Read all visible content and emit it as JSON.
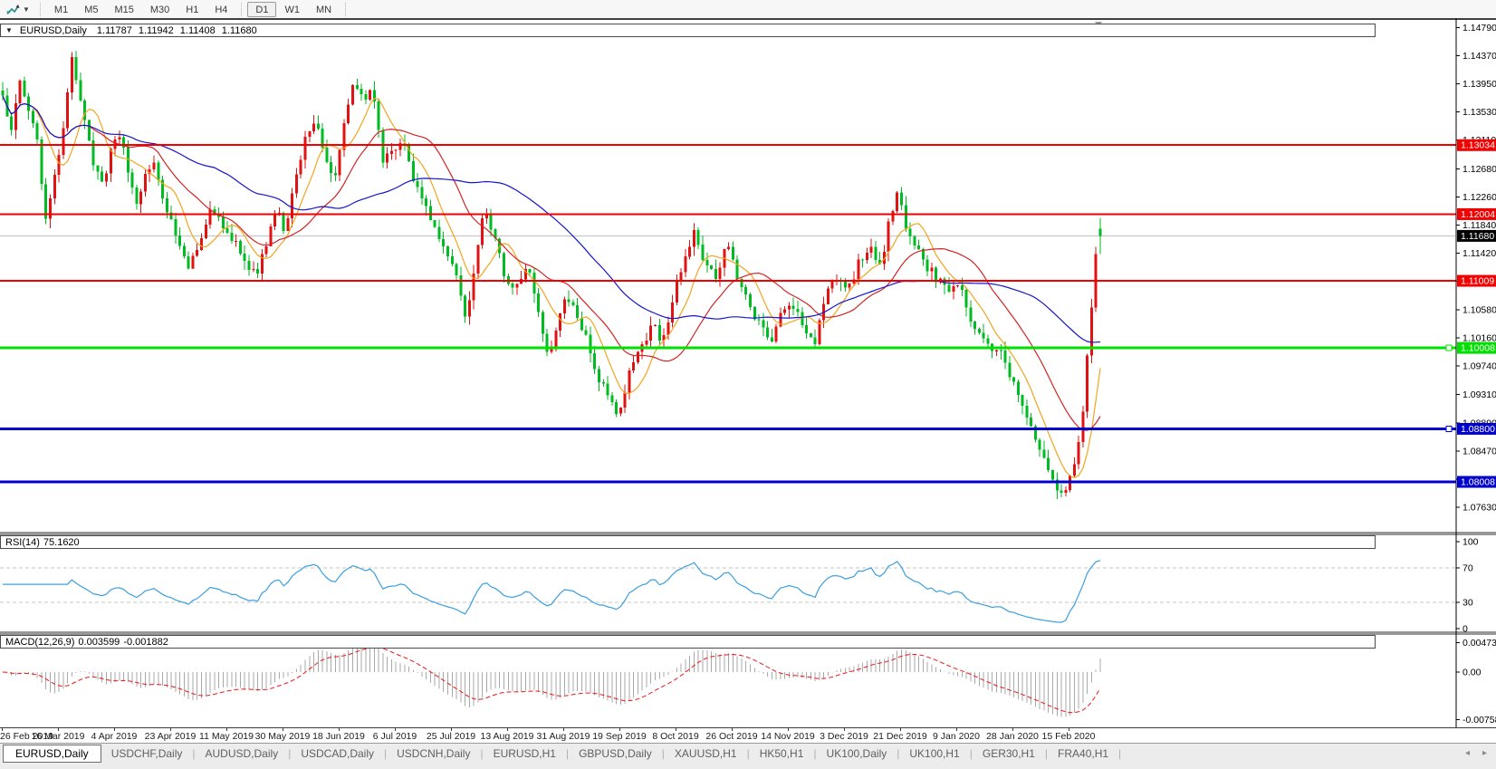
{
  "toolbar": {
    "chart_icon": "chart-type-icon",
    "timeframe_groups": [
      [
        "M1",
        "M5",
        "M15",
        "M30",
        "H1",
        "H4"
      ],
      [
        "D1",
        "W1",
        "MN"
      ]
    ],
    "active_timeframe": "D1"
  },
  "chart": {
    "symbol": "EURUSD,Daily",
    "ohlc": {
      "open": "1.11787",
      "high": "1.11942",
      "low": "1.11408",
      "close": "1.11680"
    },
    "price_axis_ticks": [
      "1.14790",
      "1.14370",
      "1.13950",
      "1.13530",
      "1.13110",
      "1.12680",
      "1.12260",
      "1.11840",
      "1.11420",
      "1.11000",
      "1.10580",
      "1.10160",
      "1.09740",
      "1.09310",
      "1.08890",
      "1.08470",
      "1.08050",
      "1.07630"
    ],
    "levels": [
      {
        "price": "1.13034",
        "color": "#f20000",
        "width": 2,
        "handle": false
      },
      {
        "price": "1.12004",
        "color": "#f20000",
        "width": 2,
        "handle": false
      },
      {
        "price": "1.11009",
        "color": "#f20000",
        "width": 2,
        "handle": false
      },
      {
        "price": "1.10008",
        "color": "#00e000",
        "width": 3,
        "handle": true
      },
      {
        "price": "1.08800",
        "color": "#0000cc",
        "width": 3,
        "handle": true
      },
      {
        "price": "1.08008",
        "color": "#0000cc",
        "width": 3,
        "handle": false
      }
    ],
    "current_price": {
      "value": "1.11680",
      "line_color": "#c2c2c2",
      "badge_bg": "#000000"
    }
  },
  "rsi": {
    "name": "RSI(14)",
    "value": "75.1620",
    "axis_ticks": [
      "100",
      "70",
      "30",
      "0"
    ],
    "dashed_levels": [
      70,
      30
    ],
    "line_color": "#3a9fe0"
  },
  "macd": {
    "name": "MACD(12,26,9)",
    "value_macd": "0.003599",
    "value_signal": "-0.001882",
    "axis_ticks": [
      "0.004738",
      "0.00",
      "-0.007584"
    ],
    "hist_color": "#a9a9a9",
    "signal_color": "#f01414"
  },
  "date_axis": [
    "26 Feb 2019",
    "16 Mar 2019",
    "4 Apr 2019",
    "23 Apr 2019",
    "11 May 2019",
    "30 May 2019",
    "18 Jun 2019",
    "6 Jul 2019",
    "25 Jul 2019",
    "13 Aug 2019",
    "31 Aug 2019",
    "19 Sep 2019",
    "8 Oct 2019",
    "26 Oct 2019",
    "14 Nov 2019",
    "3 Dec 2019",
    "21 Dec 2019",
    "9 Jan 2020",
    "28 Jan 2020",
    "15 Feb 2020"
  ],
  "tabs": {
    "items": [
      {
        "label": "EURUSD,Daily",
        "active": true
      },
      {
        "label": "USDCHF,Daily",
        "active": false
      },
      {
        "label": "AUDUSD,Daily",
        "active": false
      },
      {
        "label": "USDCAD,Daily",
        "active": false
      },
      {
        "label": "USDCNH,Daily",
        "active": false
      },
      {
        "label": "EURUSD,H1",
        "active": false
      },
      {
        "label": "GBPUSD,Daily",
        "active": false
      },
      {
        "label": "XAUUSD,H1",
        "active": false
      },
      {
        "label": "HK50,H1",
        "active": false
      },
      {
        "label": "UK100,Daily",
        "active": false
      },
      {
        "label": "UK100,H1",
        "active": false
      },
      {
        "label": "GER30,H1",
        "active": false
      },
      {
        "label": "FRA40,H1",
        "active": false
      }
    ],
    "scroll_left": "◂",
    "scroll_right": "▸"
  },
  "chart_data": {
    "type": "candlestick",
    "symbol": "EURUSD",
    "timeframe": "Daily",
    "candle_count": 255,
    "seed": 97,
    "bull_color": "#e01212",
    "bear_color": "#00bb22",
    "price_max_visible": 1.1493,
    "price_min_visible": 1.0727,
    "last_ohlc": [
      1.11787,
      1.11942,
      1.11408,
      1.1168
    ],
    "close_anchors": [
      [
        0.0,
        1.1372
      ],
      [
        0.008,
        1.133
      ],
      [
        0.016,
        1.14
      ],
      [
        0.024,
        1.1358
      ],
      [
        0.032,
        1.1302
      ],
      [
        0.04,
        1.1184
      ],
      [
        0.048,
        1.1262
      ],
      [
        0.056,
        1.133
      ],
      [
        0.062,
        1.1436
      ],
      [
        0.068,
        1.1388
      ],
      [
        0.075,
        1.134
      ],
      [
        0.082,
        1.1282
      ],
      [
        0.09,
        1.1242
      ],
      [
        0.1,
        1.13
      ],
      [
        0.108,
        1.1322
      ],
      [
        0.115,
        1.1256
      ],
      [
        0.122,
        1.1218
      ],
      [
        0.13,
        1.1262
      ],
      [
        0.138,
        1.1278
      ],
      [
        0.145,
        1.1228
      ],
      [
        0.152,
        1.1196
      ],
      [
        0.16,
        1.1158
      ],
      [
        0.17,
        1.1122
      ],
      [
        0.18,
        1.1152
      ],
      [
        0.19,
        1.1212
      ],
      [
        0.2,
        1.1188
      ],
      [
        0.21,
        1.1162
      ],
      [
        0.22,
        1.1136
      ],
      [
        0.23,
        1.1108
      ],
      [
        0.24,
        1.1156
      ],
      [
        0.25,
        1.1208
      ],
      [
        0.258,
        1.1172
      ],
      [
        0.266,
        1.1246
      ],
      [
        0.276,
        1.1312
      ],
      [
        0.286,
        1.1334
      ],
      [
        0.294,
        1.1288
      ],
      [
        0.302,
        1.1246
      ],
      [
        0.312,
        1.1346
      ],
      [
        0.32,
        1.1398
      ],
      [
        0.328,
        1.1368
      ],
      [
        0.336,
        1.139
      ],
      [
        0.346,
        1.1282
      ],
      [
        0.356,
        1.1292
      ],
      [
        0.364,
        1.131
      ],
      [
        0.374,
        1.1252
      ],
      [
        0.384,
        1.1222
      ],
      [
        0.394,
        1.1182
      ],
      [
        0.404,
        1.1146
      ],
      [
        0.414,
        1.1106
      ],
      [
        0.422,
        1.1044
      ],
      [
        0.43,
        1.112
      ],
      [
        0.438,
        1.1204
      ],
      [
        0.448,
        1.1172
      ],
      [
        0.458,
        1.1096
      ],
      [
        0.468,
        1.1092
      ],
      [
        0.478,
        1.1122
      ],
      [
        0.488,
        1.1058
      ],
      [
        0.498,
        1.0982
      ],
      [
        0.506,
        1.1034
      ],
      [
        0.514,
        1.1082
      ],
      [
        0.524,
        1.1038
      ],
      [
        0.534,
        1.1006
      ],
      [
        0.544,
        1.0948
      ],
      [
        0.554,
        1.0928
      ],
      [
        0.562,
        1.0898
      ],
      [
        0.572,
        1.0972
      ],
      [
        0.582,
        1.0996
      ],
      [
        0.592,
        1.1044
      ],
      [
        0.6,
        1.1002
      ],
      [
        0.61,
        1.1072
      ],
      [
        0.62,
        1.1132
      ],
      [
        0.63,
        1.1172
      ],
      [
        0.64,
        1.1128
      ],
      [
        0.65,
        1.1102
      ],
      [
        0.66,
        1.1158
      ],
      [
        0.67,
        1.1106
      ],
      [
        0.68,
        1.1068
      ],
      [
        0.69,
        1.1032
      ],
      [
        0.7,
        1.1012
      ],
      [
        0.71,
        1.1052
      ],
      [
        0.72,
        1.1068
      ],
      [
        0.73,
        1.1022
      ],
      [
        0.74,
        1.1006
      ],
      [
        0.75,
        1.1082
      ],
      [
        0.76,
        1.1108
      ],
      [
        0.77,
        1.1082
      ],
      [
        0.78,
        1.1132
      ],
      [
        0.79,
        1.1152
      ],
      [
        0.8,
        1.1122
      ],
      [
        0.808,
        1.1192
      ],
      [
        0.816,
        1.1236
      ],
      [
        0.824,
        1.1168
      ],
      [
        0.832,
        1.1158
      ],
      [
        0.842,
        1.112
      ],
      [
        0.852,
        1.1104
      ],
      [
        0.862,
        1.1082
      ],
      [
        0.872,
        1.1092
      ],
      [
        0.882,
        1.1042
      ],
      [
        0.892,
        1.1022
      ],
      [
        0.902,
        1.1
      ],
      [
        0.912,
        1.0988
      ],
      [
        0.922,
        1.0942
      ],
      [
        0.932,
        1.0898
      ],
      [
        0.942,
        1.0858
      ],
      [
        0.95,
        1.0828
      ],
      [
        0.958,
        1.08
      ],
      [
        0.966,
        1.0784
      ],
      [
        0.972,
        1.0808
      ],
      [
        0.978,
        1.0842
      ],
      [
        0.984,
        1.0892
      ],
      [
        0.988,
        1.0992
      ],
      [
        0.992,
        1.1052
      ],
      [
        0.996,
        1.1142
      ],
      [
        1.0,
        1.1168
      ]
    ],
    "moving_averages": [
      {
        "period": 8,
        "color": "#f2a51e"
      },
      {
        "period": 21,
        "color": "#d22424"
      },
      {
        "period": 50,
        "color": "#1616cc"
      }
    ],
    "rsi_period": 14,
    "macd_params": [
      12,
      26,
      9
    ]
  }
}
